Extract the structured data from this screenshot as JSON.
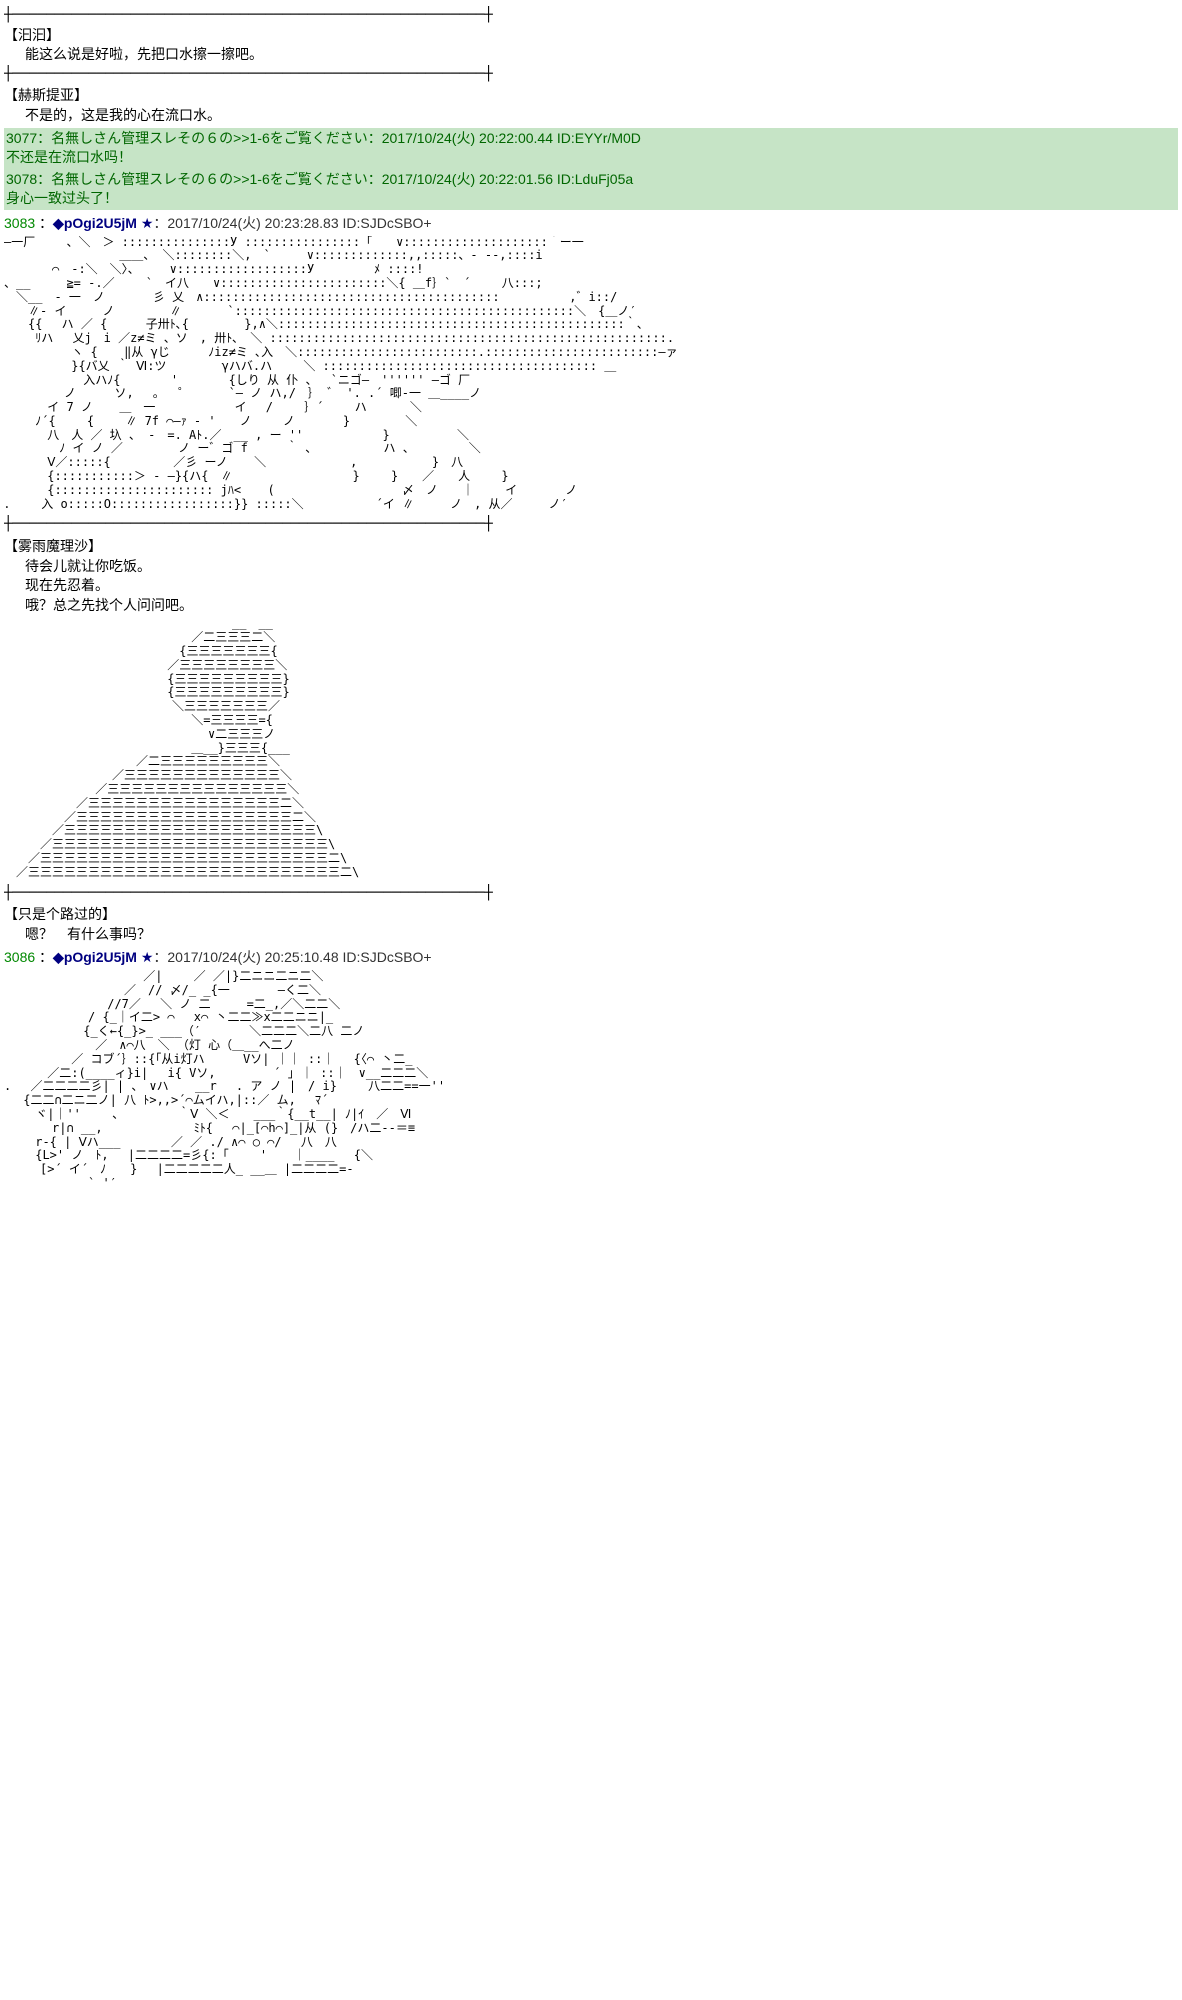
{
  "colors": {
    "background": "#ffffff",
    "text": "#000000",
    "comment_bg": "#c6e4c6",
    "comment_text": "#006600",
    "post_number": "#008800",
    "tripcode": "#000080"
  },
  "dialogue1": {
    "speaker": "【汩汩】",
    "text": "能这么说是好啦，先把口水擦一擦吧。"
  },
  "dialogue2": {
    "speaker": "【赫斯提亚】",
    "text": "不是的，这是我的心在流口水。"
  },
  "comment1": {
    "number": "3077",
    "meta": "：名無しさん管理スレその６の>>1-6をご覧ください：2017/10/24(火) 20:22:00.44 ID:EYYr/M0D",
    "body": "不还是在流口水吗！"
  },
  "comment2": {
    "number": "3078",
    "meta": "：名無しさん管理スレその６の>>1-6をご覧ください：2017/10/24(火) 20:22:01.56 ID:LduFj05a",
    "body": "身心一致过头了！"
  },
  "post1": {
    "number": "3083",
    "tripcode": "◆pOgi2U5jM",
    "star": "★",
    "date": "：2017/10/24(火) 20:23:28.83 ID:SJDcSBO+"
  },
  "dialogue3": {
    "speaker": "【雾雨魔理沙】",
    "line1": "待会儿就让你吃饭。",
    "line2": "现在先忍着。",
    "line3": "哦？总之先找个人问问吧。"
  },
  "dialogue4": {
    "speaker": "【只是个路过的】",
    "text": "嗯？　有什么事吗？"
  },
  "post2": {
    "number": "3086",
    "tripcode": "◆pOgi2U5jM",
    "star": "★",
    "date": "：2017/10/24(火) 20:25:10.48 ID:SJDcSBO+"
  },
  "frames": {
    "top": "┼────────────────────────────────────────────────────────┼",
    "divider": "┼────────────────────────────────────────────────────────┼"
  },
  "aa_art1": "―一厂　　 、＼　＞ :::::::::::::::У ::::::::::::::::「　　∨::::::::::::::::::::｀ー一\n　　　　　　　　　 ＿＿、 ＼::::::::＼,　`　　　∨:::::::::::::,,:::::、- --,::::i\n　　　　⌒　-:＼　＼〉、　　　∨::::::::::::::::::У　　　　　ﾒ ::::!\n、__　　　≧= -.／　　 `　イ八　　∨:::::::::::::::::::::::＼{ ＿f｝`　´ 　　八:::;\n　＼__　- 一　ノ　　　　彡 乂　∧:::::::::::::::::::::::::::::::::::::::::　　 　 　 ,゛i::/\n　　∥- イ　　　ノ　　　　 ∥ 　 　 `:::::::::::::::::::::::::::::::::::::::::::::::＼　{＿ノ′\n　　{{ 　ハ ／ { 　 　子卅ﾄ､{ 　　　　},∧＼::::::::::::::::::::::::::::::::::::::::::::::::｀、\n　　 ﾘハ　 乂j　i ／z≠ミ 、ソ　, 卅ﾄ､　＼ :::::::::::::::::::::::::::::::::::::::::::::::::::::::.\n　　　　　 ヽ { 　 ‖从 γじ 　　 ﾉiz≠ミ ､入　＼:::::::::::::::::::::::::.::::::::::::::::::::::::―ァ\n　　　　　 }{バ乂 ｀ Ⅵ:ツ　　 　　γハバ.ハ　　 ＼ :::::::::::::::::::::::::::::::::::::: ＿\n　　　　　　 入ハﾉ{ 　　　 ' 　　　 {しり 从 仆 、　 `ニゴ―　'''''' ―ゴ 厂\n　　　　　ノ 　　 ソ,　 ｡　 ゜ 　 　`― ノ ハ,/　｝ ゛ '. .´ 唧-一 ＿____ノ\n　　　 イ 7 ノ 　 ＿　一　　　　　　 イ 　/　　 ｝´　　 ハ 　　　＼\n　　 ﾉ´{ 　　{　　 ∥ 7f ⌒―ｧ - '　　ノ　 　ノ　　　　}　　　　 ＼\n　　 　八　人 ／ 圦 、 -　=. Аﾄ.／　__ , ー ''　　 　　　　}　　　　　 ＼\n　　　　 ﾉ イ ノ ／　　　 　ノ ー゛ゴ f 　　 ｀ ､　　　　　　ハ 、　　　　　＼\n　　 　Ⅴ／:::::{ 　　　　 ／彡 ーノ 　 ＼　　　　　　　,　　 　　　 }　八\n　　 　{:::::::::::＞ - ―}{ハ{　∥　　　　　　　　　　}　　 }　　／　　人　　 }\n　　 　{:::::::::::::::::::::: jﾊ< 　 ( 　　　　　　　　　　〆　ノ　　｜　　 イ　　　　ノ\n．　　 入 o:::::O:::::::::::::::::}} :::::＼　　　　　　´イ ∥　　　ノ　, 从／　　　ノ′",
  "aa_art2": "　　　　　　　　　　　　　　　　　　　__　__\n　　　　　　　　　　　　　　　 ／二三三三二＼\n　　　　　　　　　　　　　　 {三三三三三三三{\n　　　　　　　　　　　　　 ／三三三三三三三三＼\n　　　　　　　　　　　　　 {三三三三三三三三三}\n　　　　　　　　　　　　　 {三三三三三三三三三}\n　　　　　　　　　　　　　　＼三三三三三三三／\n　　　　　　　　　　　　　　　 ＼=三三三三={\n　　　　　　　　　　　　　　　　　∨二三三三ノ\n 　　　　　　　　　　　　　　　＿__}三三三{___\n　　　　　　　　　　　／二三三三三三三三三三＼\n　　　　　　　　　／三三三三三三三三三三三三三＼\n　　　　　　　 ／三三三三三三三三三三三三三三三＼\n　　　　　　／三三三三三三三三三三三三三三三三二＼\n　　　　　／三三三三三三三三三三三三三三三三三三二＼\n　　　　／三三三三三三三三三三三三三三三三三三三三三\\\n　　　／三三三三三三三三三三三三三三三三三三三三三三三\\\n　　／三三三三三三三三三三三三三三三三三三三三三三三三二\\\n　／三三三三三三三三三三三三三三三三三三三三三三三三三三二\\",
  "aa_art3": "　　　　　　　　　　　 ／|　　 ／ ／|}二ニニ二ニ二＼\n　　　　　　　　　　／　// 〆/_ _{一　　　　―く二＼\n　　　　　　　　 //7／　 ＼ ノ 二　　　=二_,／＼二二＼\n　　　　　　　/ {_｜イ二> ⌒ 　x⌒ 丶二二≫x二二ニニ|_\n　　　　　　 {_く←{_}>_ ___（′　　　　＼二二二＼二八 二ノ\n　　　　　　　 ／　∧⌒八　＼ （灯 心（＿__へ二ノ\n　　　　　 ／ コブ´｝::{「从i灯ハ　 　 Vソ| ｜｜ ::｜ 　{〈⌒ 丶二_\n　　　 ／二:(____ィ}i|　 i{ Vソ, 　 　 　´ ｣ ｜ ::｜　∨__二二二＼\n. 　／二二二二彡| | 、　∨ハ 　 __r 　. ア ノ |　/ i} 　　八二二==一''\n　 {二二∩二ニ二ノ| 八 ﾄ>,,>´⌒ムイハ,|::／ ム,　 ﾏ´\n　　 ヾ|｜''　　 、　　　　　｀Ⅴ ＼＜　　___｀{__t__| ﾉ|ｲ　／　Ⅵ\n　　　　r|∩ __, 　　　　　　　ﾐﾄ{　 ⌒|_[⌒h⌒]_|从 (}　/ハ二--＝≡\n　　 r-{ | Ⅴハ___ 　　　 ／ ／ ./ ∧⌒ ○ ⌒/　 八　八\n　　 {L>' ノ　ﾄ,　 |二二二二=彡{:「　　 ' 　 ｜____　 {＼\n　　　[>´ イ´　ﾉ　　}　 |二二二二二人_ __＿ |二二二二=-\n　　　　　　　` '′"
}
